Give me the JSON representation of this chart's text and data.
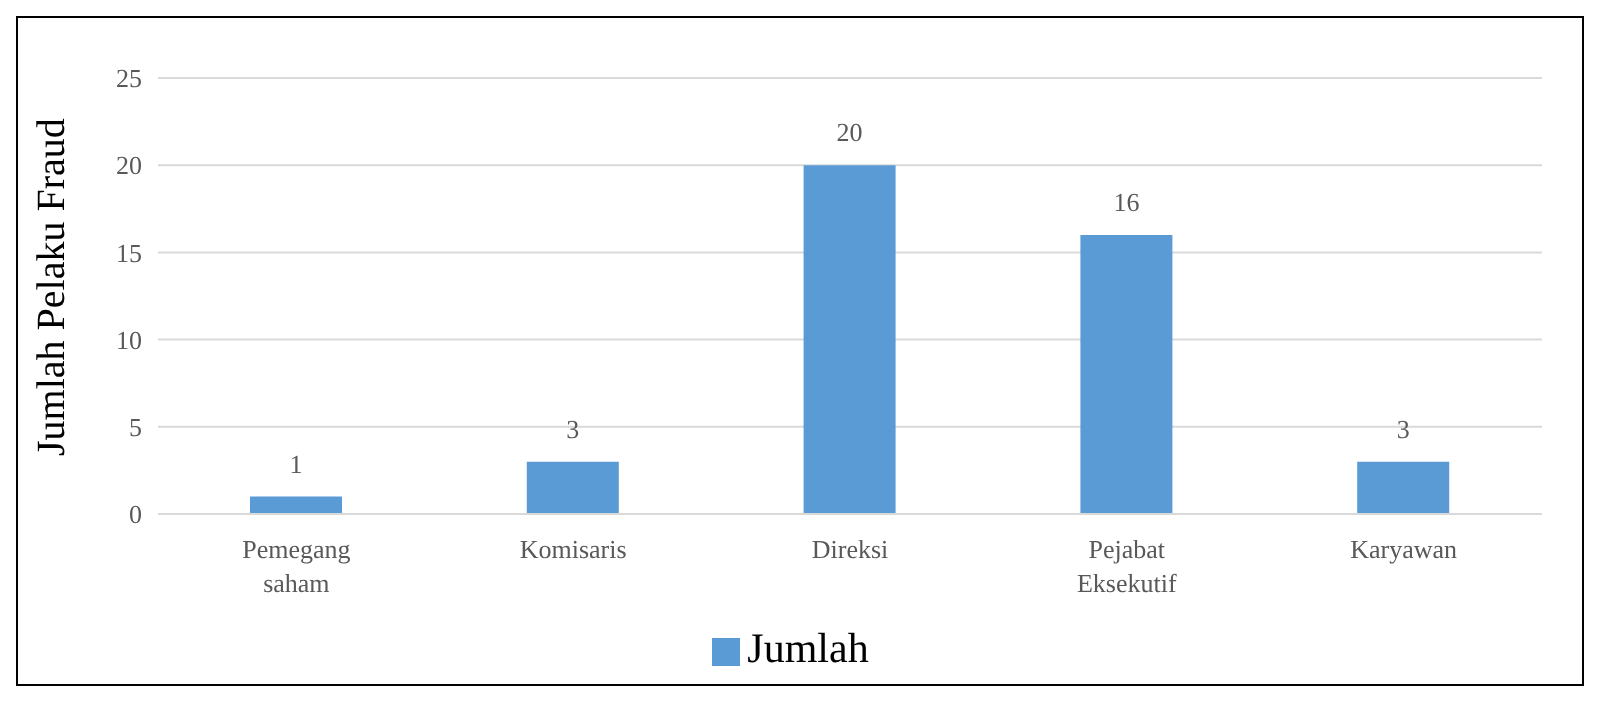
{
  "chart_data": {
    "type": "bar",
    "ylabel": "Jumlah Pelaku Fraud",
    "categories": [
      "Pemegang saham",
      "Komisaris",
      "Direksi",
      "Pejabat Eksekutif",
      "Karyawan"
    ],
    "series": [
      {
        "name": "Jumlah",
        "color": "#5b9bd5",
        "values": [
          1,
          3,
          20,
          16,
          3
        ]
      }
    ],
    "ylim": [
      0,
      25
    ],
    "yticks": [
      0,
      5,
      10,
      15,
      20,
      25
    ],
    "grid": "y",
    "legend": "bottom",
    "data_labels": true
  }
}
